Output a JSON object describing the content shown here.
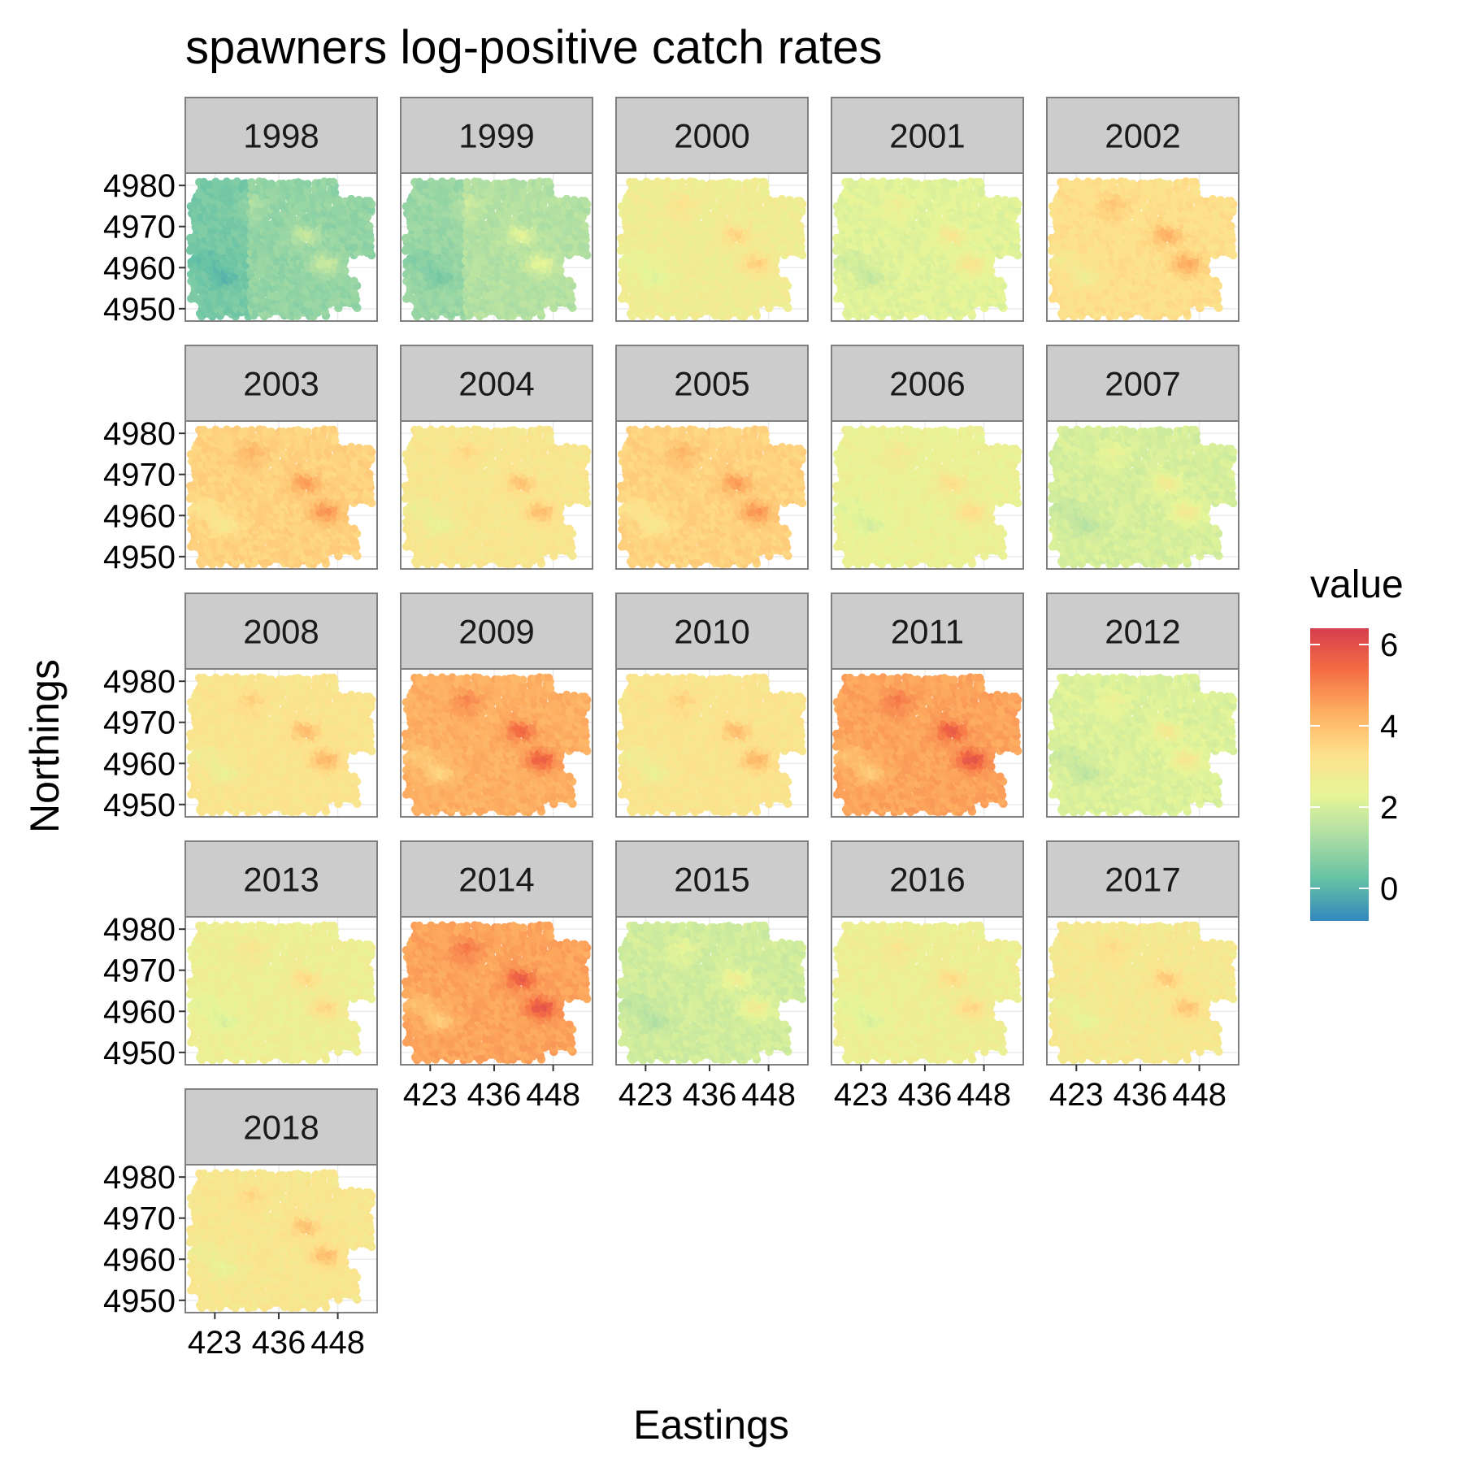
{
  "chart_data": {
    "type": "heatmap",
    "title": "spawners log-positive catch rates",
    "xlabel": "Eastings",
    "ylabel": "Northings",
    "facets": [
      "1998",
      "1999",
      "2000",
      "2001",
      "2002",
      "2003",
      "2004",
      "2005",
      "2006",
      "2007",
      "2008",
      "2009",
      "2010",
      "2011",
      "2012",
      "2013",
      "2014",
      "2015",
      "2016",
      "2017",
      "2018"
    ],
    "x_ticks": [
      423,
      436,
      448
    ],
    "y_ticks": [
      4950,
      4960,
      4970,
      4980
    ],
    "xlim": [
      417,
      456
    ],
    "ylim": [
      4947,
      4983
    ],
    "grid": true,
    "legend": {
      "title": "value",
      "position": "right",
      "breaks": [
        0,
        2,
        4,
        6
      ],
      "limits": [
        -0.8,
        6.4
      ],
      "colors": [
        "#3288bd",
        "#66c2a5",
        "#abdda4",
        "#e6f598",
        "#fee08b",
        "#fdae61",
        "#f46d43",
        "#d53e4f"
      ]
    },
    "facet_mean_values": {
      "1998": 0.9,
      "1999": 1.4,
      "2000": 2.7,
      "2001": 2.2,
      "2002": 3.3,
      "2003": 3.6,
      "2004": 3.0,
      "2005": 3.6,
      "2006": 2.5,
      "2007": 2.0,
      "2008": 3.1,
      "2009": 4.3,
      "2010": 3.1,
      "2011": 4.5,
      "2012": 2.1,
      "2013": 2.6,
      "2014": 4.5,
      "2015": 1.9,
      "2016": 2.6,
      "2017": 2.9,
      "2018": 3.0
    },
    "hotspots": [
      {
        "easting": 430.5,
        "northing": 4975,
        "offset": 0.8
      },
      {
        "easting": 441.5,
        "northing": 4968,
        "offset": 1.4
      },
      {
        "easting": 446.0,
        "northing": 4961,
        "offset": 1.8
      },
      {
        "easting": 425.0,
        "northing": 4958,
        "offset": -0.9
      },
      {
        "easting": 421.0,
        "northing": 4962,
        "offset": -0.7
      }
    ]
  }
}
